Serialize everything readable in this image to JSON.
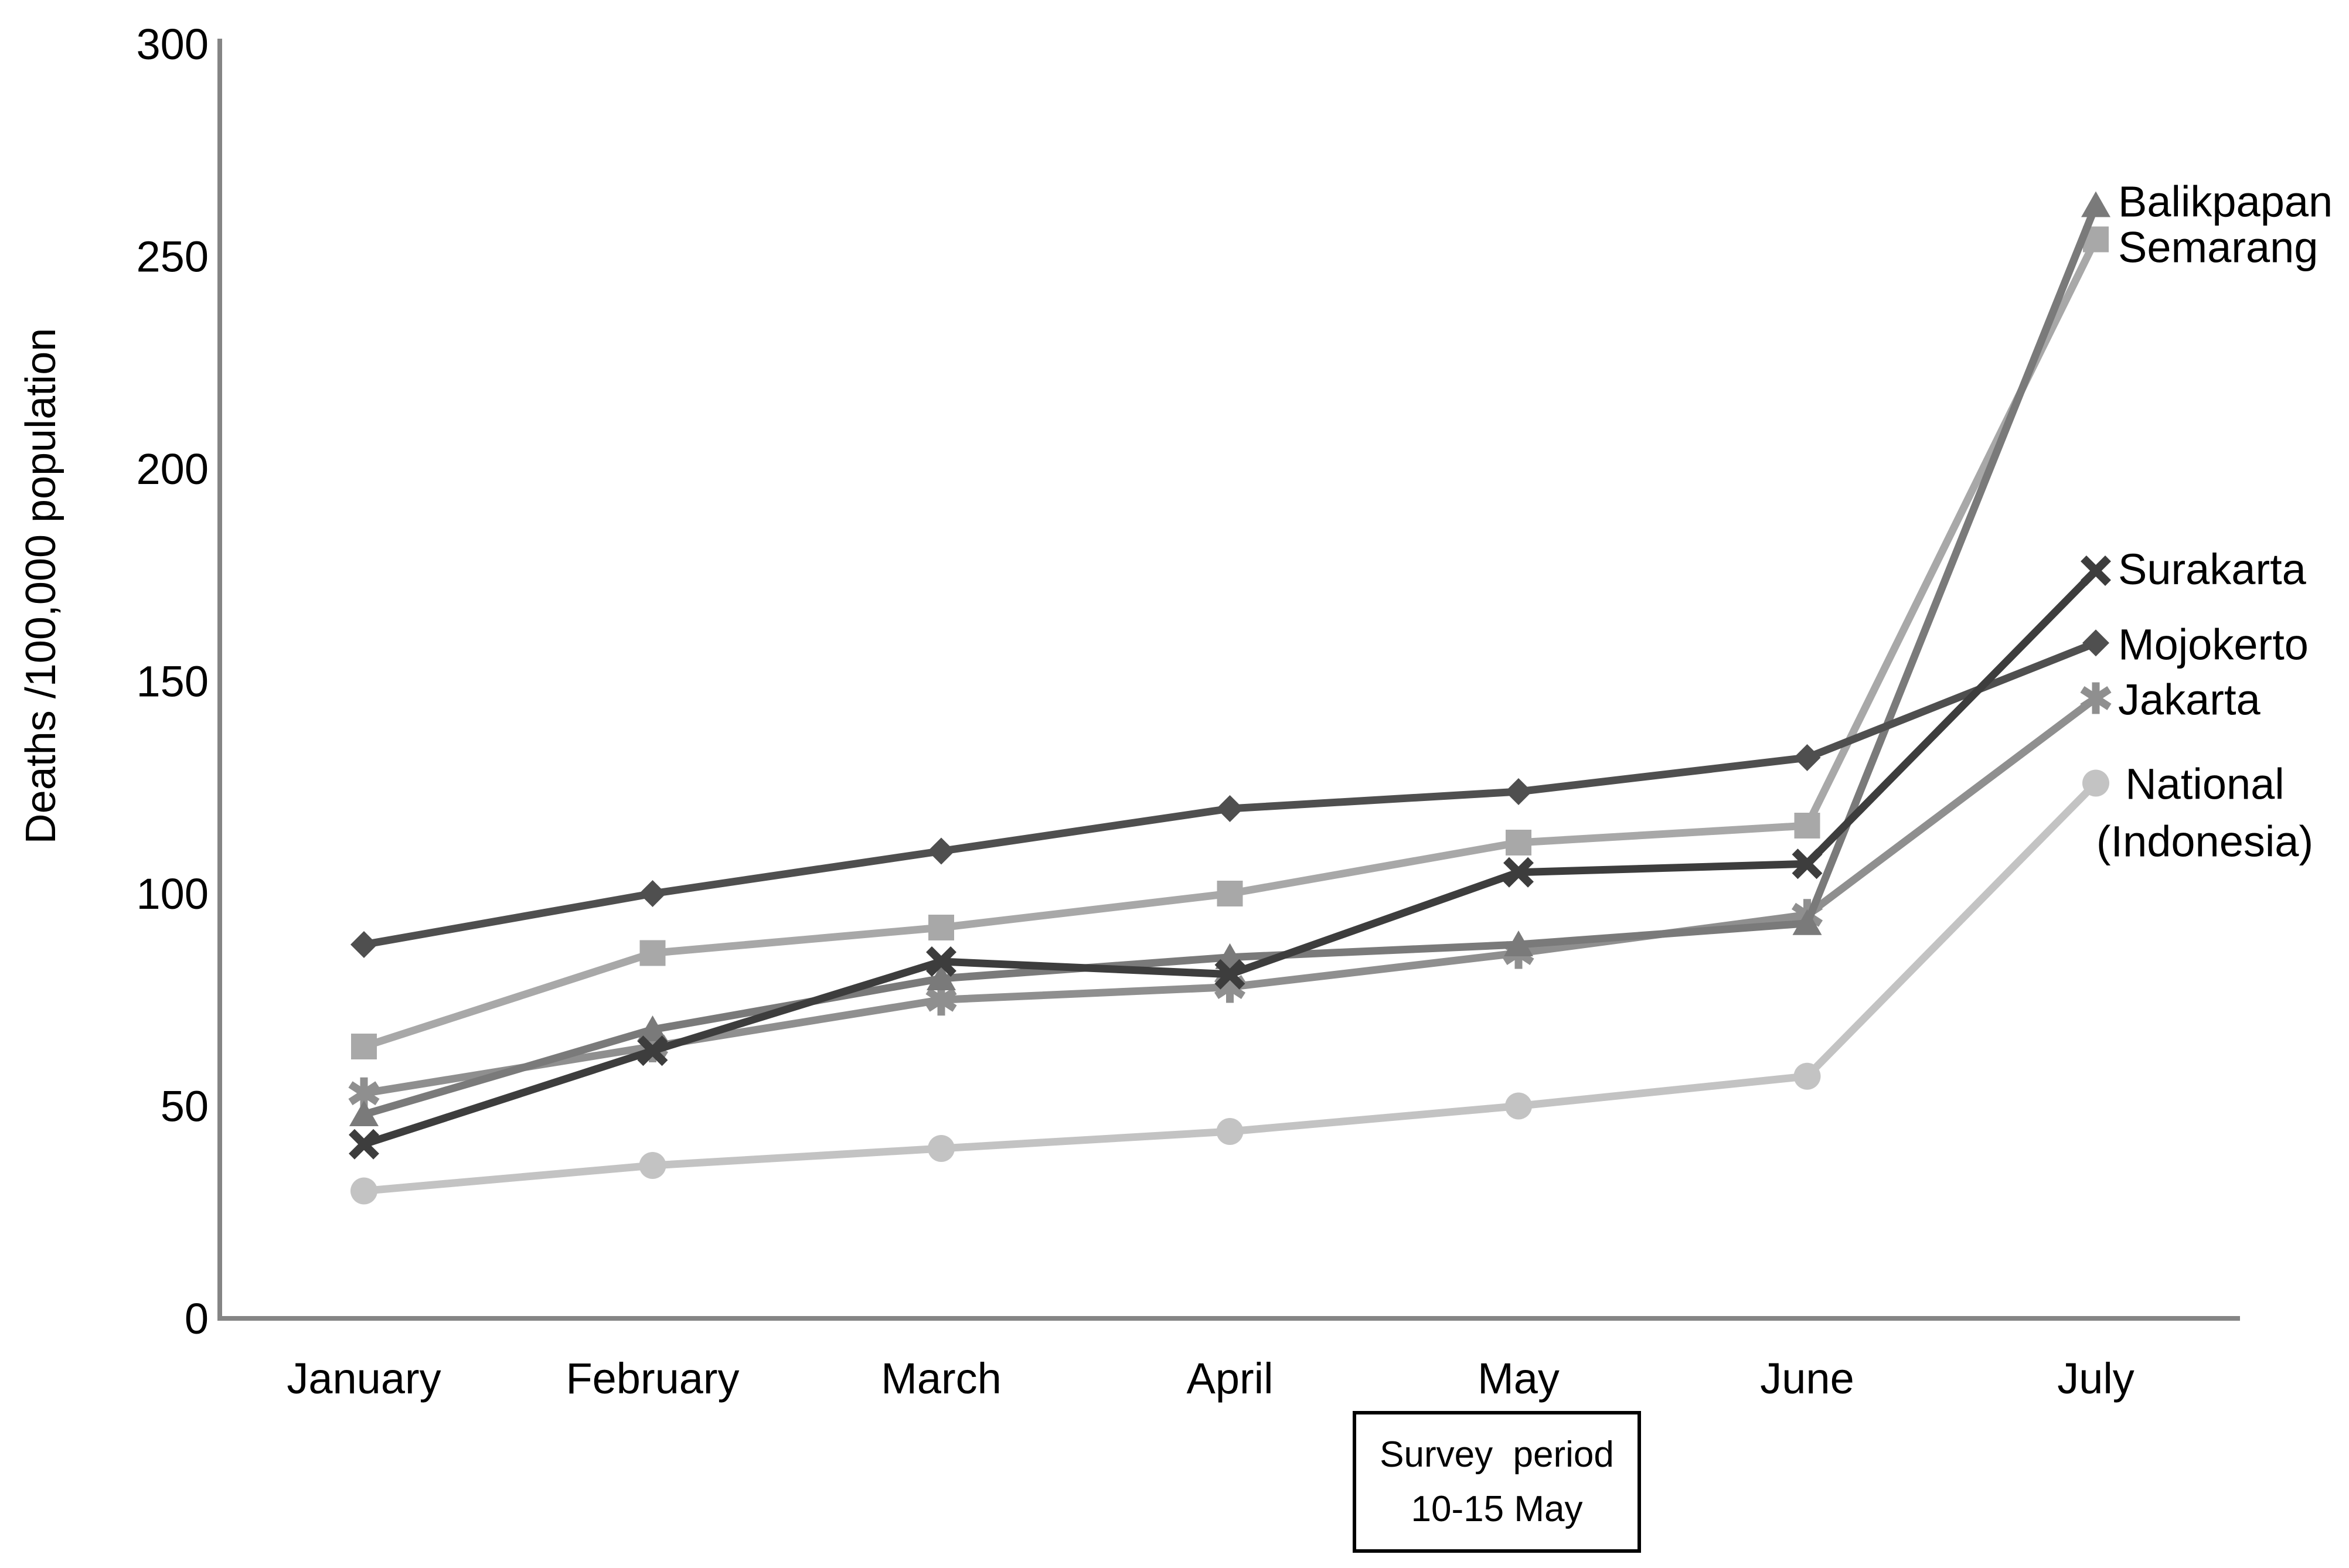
{
  "chart_data": {
    "type": "line",
    "title": "",
    "xlabel": "",
    "ylabel": "Deaths /100,000 population",
    "ylim": [
      0,
      300
    ],
    "yticks": [
      0,
      50,
      100,
      150,
      200,
      250,
      300
    ],
    "grid": false,
    "legend_position": "end-of-line-labels-right",
    "categories": [
      "January",
      "February",
      "March",
      "April",
      "May",
      "June",
      "July"
    ],
    "series": [
      {
        "name": "National (Indonesia)",
        "label_lines": [
          "National",
          "(Indonesia)"
        ],
        "marker": "circle",
        "color": "#c3c3c3",
        "values": [
          30,
          36,
          40,
          44,
          50,
          57,
          126
        ]
      },
      {
        "name": "Semarang",
        "label_lines": [
          "Semarang"
        ],
        "marker": "square",
        "color": "#a8a8a8",
        "values": [
          64,
          86,
          92,
          100,
          112,
          116,
          254
        ]
      },
      {
        "name": "Jakarta",
        "label_lines": [
          "Jakarta"
        ],
        "marker": "asterisk",
        "color": "#8f8f8f",
        "values": [
          53,
          64,
          75,
          78,
          86,
          95,
          146
        ]
      },
      {
        "name": "Balikpapan",
        "label_lines": [
          "Balikpapan"
        ],
        "marker": "triangle",
        "color": "#7a7a7a",
        "values": [
          48,
          68,
          80,
          85,
          88,
          93,
          262
        ]
      },
      {
        "name": "Mojokerto",
        "label_lines": [
          "Mojokerto"
        ],
        "marker": "diamond",
        "color": "#4f4f4f",
        "values": [
          88,
          100,
          110,
          120,
          124,
          132,
          159
        ]
      },
      {
        "name": "Surakarta",
        "label_lines": [
          "Surakarta"
        ],
        "marker": "x",
        "color": "#3d3d3d",
        "values": [
          41,
          63,
          84,
          81,
          105,
          107,
          176
        ]
      }
    ]
  },
  "annotation": {
    "line1": "Survey  period",
    "line2": "10-15 May"
  },
  "colors": {
    "axis": "#858585",
    "text": "#000000",
    "background": "#ffffff"
  }
}
